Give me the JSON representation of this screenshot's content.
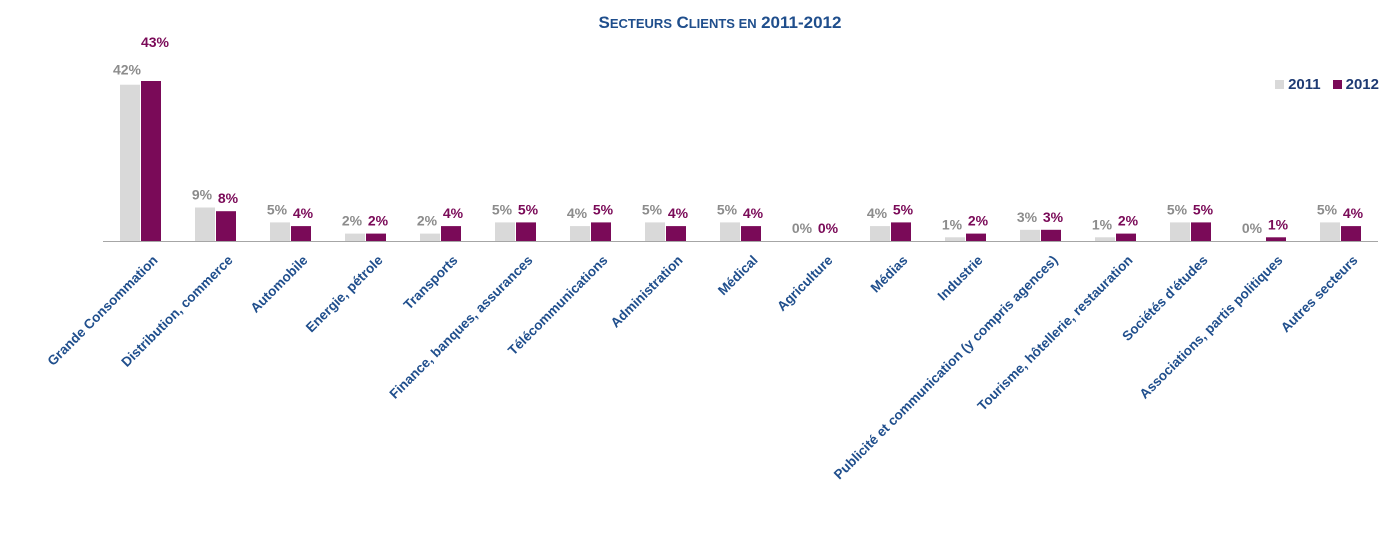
{
  "chart_data": {
    "type": "bar",
    "title": "Secteurs Clients en 2011-2012",
    "categories": [
      "Grande Consommation",
      "Distribution, commerce",
      "Automobile",
      "Energie, pétrole",
      "Transports",
      "Finance, banques, assurances",
      "Télécommunications",
      "Administration",
      "Médical",
      "Agriculture",
      "Médias",
      "Industrie",
      "Publicité et communication (y compris agences)",
      "Tourisme, hôtellerie, restauration",
      "Sociétés d'études",
      "Associations, partis politiques",
      "Autres secteurs"
    ],
    "series": [
      {
        "name": "2011",
        "color": "#d9d9d9",
        "label_color": "#8c8c8c",
        "values": [
          42,
          9,
          5,
          2,
          2,
          5,
          4,
          5,
          5,
          0,
          4,
          1,
          3,
          1,
          5,
          0,
          5
        ]
      },
      {
        "name": "2012",
        "color": "#7a0a58",
        "label_color": "#7a0a58",
        "values": [
          43,
          8,
          4,
          2,
          4,
          5,
          5,
          4,
          4,
          0,
          5,
          2,
          3,
          2,
          5,
          1,
          4
        ]
      }
    ],
    "value_suffix": "%",
    "ylim": [
      0,
      43
    ],
    "grid": false,
    "legend_position": "top-right",
    "xlabel_color": "#1f4e8c"
  }
}
